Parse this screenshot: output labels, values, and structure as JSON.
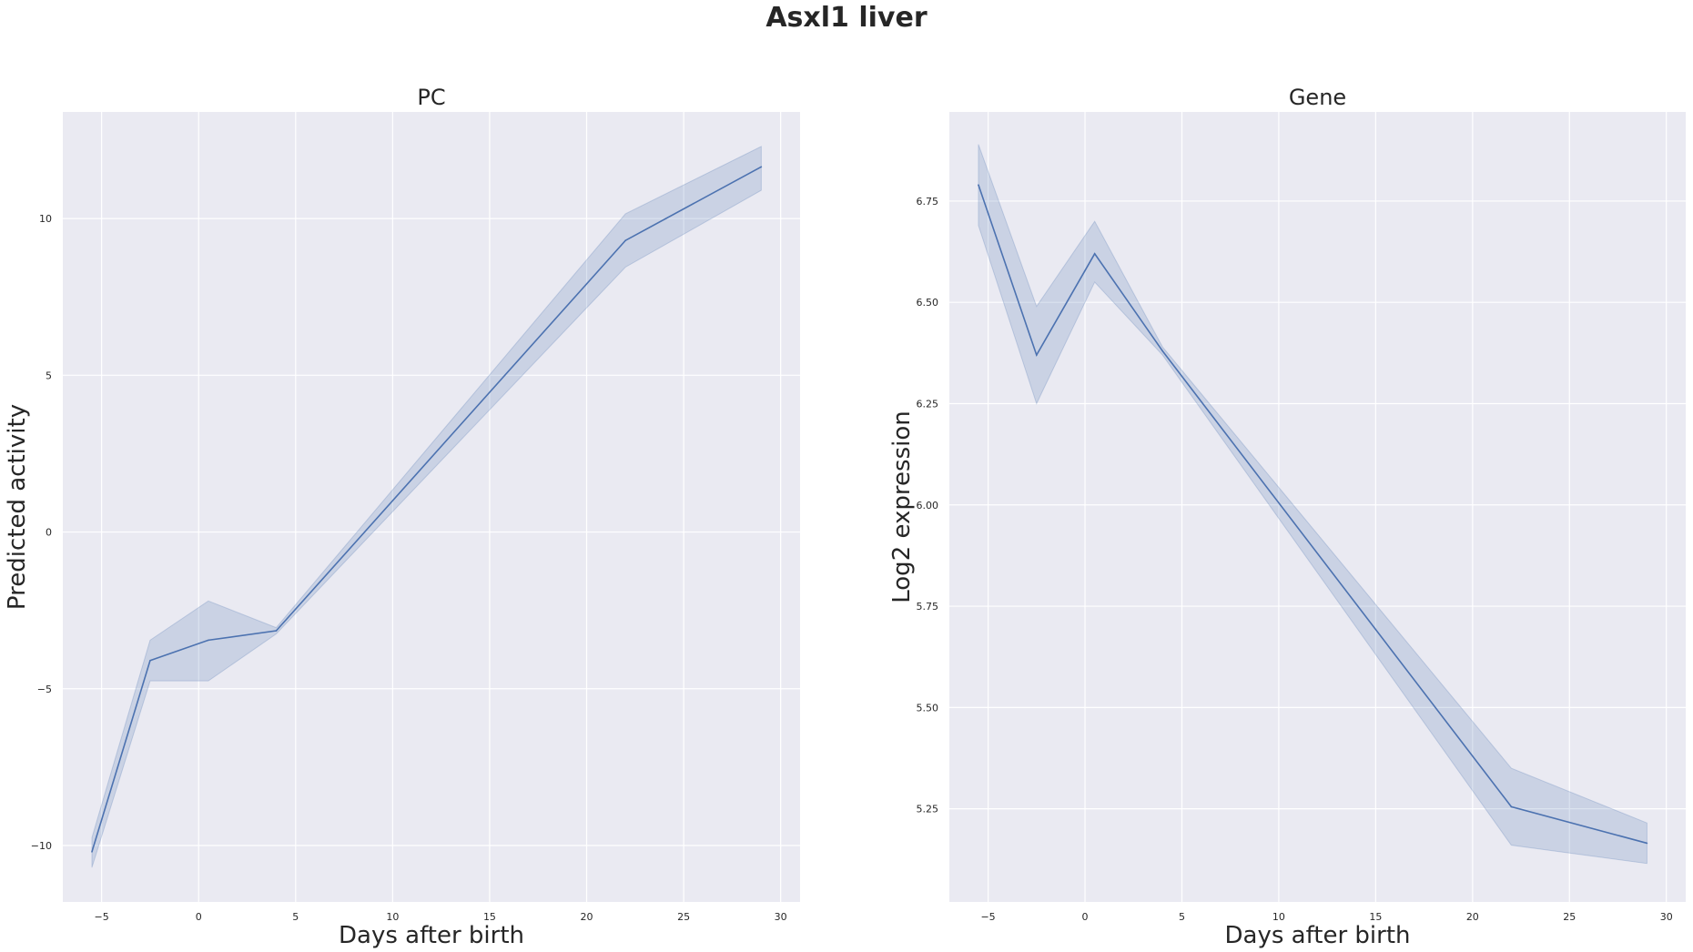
{
  "figure": {
    "title": "Asxl1 liver"
  },
  "chart_data": [
    {
      "type": "line",
      "title": "PC",
      "xlabel": "Days after birth",
      "ylabel": "Predicted activity",
      "xlim": [
        -7,
        31
      ],
      "ylim": [
        -11.8,
        13.4
      ],
      "xticks": [
        -5,
        0,
        5,
        10,
        15,
        20,
        25,
        30
      ],
      "yticks": [
        -10,
        -5,
        0,
        5,
        10
      ],
      "ytick_labels": [
        "−10",
        "−5",
        "0",
        "5",
        "10"
      ],
      "grid": true,
      "series": [
        {
          "x": [
            -5.5,
            -2.5,
            0.5,
            4,
            22,
            29
          ],
          "y": [
            -10.2,
            -4.1,
            -3.45,
            -3.15,
            9.3,
            11.65
          ],
          "ci_low": [
            -10.7,
            -4.75,
            -4.75,
            -3.25,
            8.45,
            10.9
          ],
          "ci_high": [
            -9.75,
            -3.45,
            -2.2,
            -3.05,
            10.15,
            12.3
          ],
          "color": "#4c72b0"
        }
      ]
    },
    {
      "type": "line",
      "title": "Gene",
      "xlabel": "Days after birth",
      "ylabel": "Log2 expression",
      "xlim": [
        -7,
        31
      ],
      "ylim": [
        5.02,
        6.97
      ],
      "xticks": [
        -5,
        0,
        5,
        10,
        15,
        20,
        25,
        30
      ],
      "yticks": [
        5.25,
        5.5,
        5.75,
        6.0,
        6.25,
        6.5,
        6.75
      ],
      "ytick_labels": [
        "5.25",
        "5.50",
        "5.75",
        "6.00",
        "6.25",
        "6.50",
        "6.75"
      ],
      "grid": true,
      "series": [
        {
          "x": [
            -5.5,
            -2.5,
            0.5,
            4,
            22,
            29
          ],
          "y": [
            6.79,
            6.37,
            6.62,
            6.38,
            5.255,
            5.165
          ],
          "ci_low": [
            6.69,
            6.25,
            6.55,
            6.37,
            5.16,
            5.115
          ],
          "ci_high": [
            6.89,
            6.49,
            6.7,
            6.39,
            5.35,
            5.215
          ],
          "color": "#4c72b0"
        }
      ]
    }
  ]
}
